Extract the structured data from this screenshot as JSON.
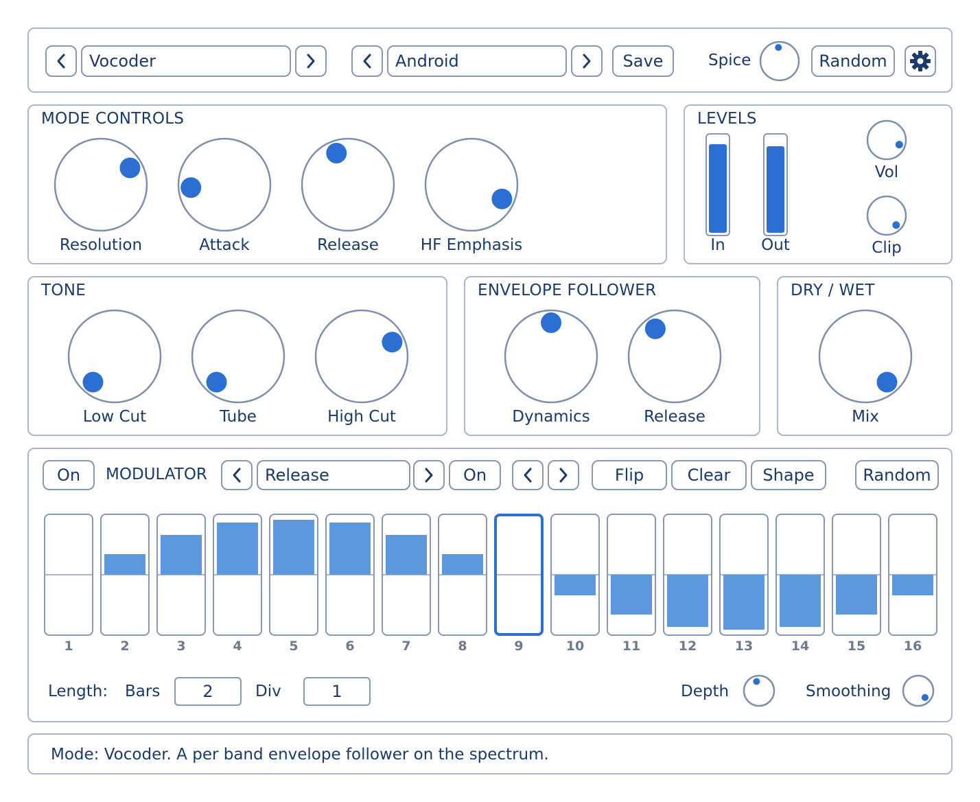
{
  "header": {
    "mode_preset": "Vocoder",
    "sub_preset": "Android",
    "save_label": "Save",
    "spice_label": "Spice",
    "random_label": "Random",
    "settings_icon": "gear-icon"
  },
  "mode_controls": {
    "title": "MODE CONTROLS",
    "knobs": [
      {
        "label": "Resolution",
        "angle": 60
      },
      {
        "label": "Attack",
        "angle": -95
      },
      {
        "label": "Release",
        "angle": -20
      },
      {
        "label": "HF Emphasis",
        "angle": 115
      }
    ]
  },
  "levels": {
    "title": "LEVELS",
    "in_label": "In",
    "out_label": "Out",
    "in_level": 0.92,
    "out_level": 0.9,
    "vol_label": "Vol",
    "clip_label": "Clip",
    "vol_angle": 110,
    "clip_angle": 135
  },
  "tone": {
    "title": "TONE",
    "knobs": [
      {
        "label": "Low Cut",
        "angle": -140
      },
      {
        "label": "Tube",
        "angle": -140
      },
      {
        "label": "High Cut",
        "angle": 65
      }
    ]
  },
  "envelope": {
    "title": "ENVELOPE FOLLOWER",
    "knobs": [
      {
        "label": "Dynamics",
        "angle": 0
      },
      {
        "label": "Release",
        "angle": -35
      }
    ]
  },
  "drywet": {
    "title": "DRY / WET",
    "knobs": [
      {
        "label": "Mix",
        "angle": 140
      }
    ]
  },
  "modulator": {
    "on_label": "On",
    "title": "MODULATOR",
    "target": "Release",
    "on2_label": "On",
    "flip_label": "Flip",
    "clear_label": "Clear",
    "shape_label": "Shape",
    "random_label": "Random",
    "selected_step": 9,
    "steps": [
      {
        "n": "1",
        "v": 0
      },
      {
        "n": "2",
        "v": 0.37
      },
      {
        "n": "3",
        "v": 0.73
      },
      {
        "n": "4",
        "v": 0.95
      },
      {
        "n": "5",
        "v": 1.0
      },
      {
        "n": "6",
        "v": 0.95
      },
      {
        "n": "7",
        "v": 0.73
      },
      {
        "n": "8",
        "v": 0.37
      },
      {
        "n": "9",
        "v": 0
      },
      {
        "n": "10",
        "v": -0.37
      },
      {
        "n": "11",
        "v": -0.73
      },
      {
        "n": "12",
        "v": -0.95
      },
      {
        "n": "13",
        "v": -1.0
      },
      {
        "n": "14",
        "v": -0.95
      },
      {
        "n": "15",
        "v": -0.73
      },
      {
        "n": "16",
        "v": -0.37
      }
    ],
    "length_label": "Length:",
    "bars_label": "Bars",
    "bars_value": "2",
    "div_label": "Div",
    "div_value": "1",
    "depth_label": "Depth",
    "depth_angle": -15,
    "smoothing_label": "Smoothing",
    "smoothing_angle": 135
  },
  "status": {
    "text": "Mode: Vocoder. A per band envelope follower on the spectrum."
  },
  "colors": {
    "accent": "#2a6fd1",
    "border": "#8597b4",
    "text": "#1a3a6b",
    "step_fill": "#5d97de"
  }
}
